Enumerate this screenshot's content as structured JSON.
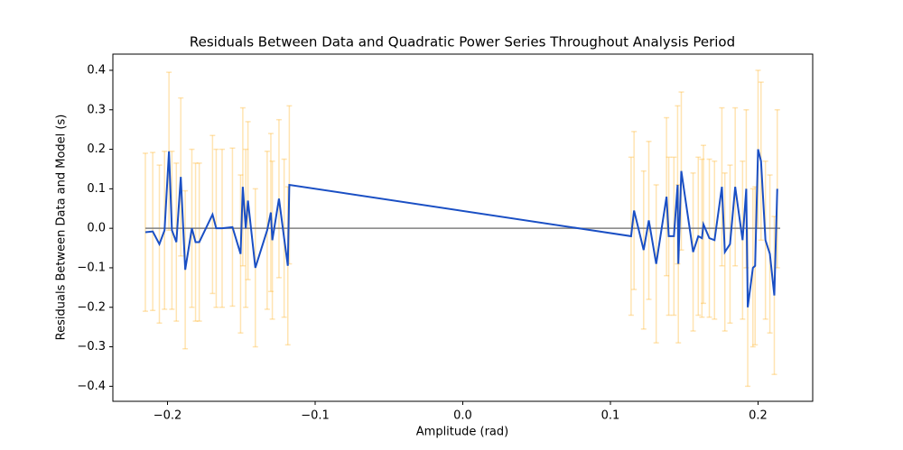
{
  "chart_data": {
    "type": "errorbar",
    "title": "Residuals Between Data and Quadratic Power Series Throughout Analysis Period",
    "xlabel": "Amplitude (rad)",
    "ylabel": "Residuals Between Data and Model (s)",
    "x": [
      -0.215,
      -0.21,
      -0.2055,
      -0.202,
      -0.199,
      -0.197,
      -0.194,
      -0.191,
      -0.188,
      -0.1835,
      -0.181,
      -0.1785,
      -0.1695,
      -0.167,
      -0.163,
      -0.156,
      -0.1505,
      -0.149,
      -0.147,
      -0.1455,
      -0.1405,
      -0.1325,
      -0.13,
      -0.129,
      -0.1245,
      -0.121,
      -0.1185,
      -0.1175,
      0.114,
      0.116,
      0.1225,
      0.126,
      0.131,
      0.138,
      0.1395,
      0.143,
      0.1455,
      0.146,
      0.148,
      0.156,
      0.1595,
      0.162,
      0.163,
      0.167,
      0.1705,
      0.1755,
      0.1775,
      0.181,
      0.1845,
      0.1895,
      0.192,
      0.193,
      0.1965,
      0.198,
      0.2,
      0.202,
      0.205,
      0.208,
      0.211,
      0.213
    ],
    "values": [
      -0.01,
      -0.008,
      -0.04,
      -0.005,
      0.195,
      -0.005,
      -0.035,
      0.13,
      -0.105,
      0.0,
      -0.035,
      -0.035,
      0.035,
      0.0,
      0.0,
      0.003,
      -0.065,
      0.105,
      0.0,
      0.07,
      -0.1,
      -0.005,
      0.04,
      -0.03,
      0.075,
      -0.025,
      -0.095,
      0.11,
      -0.02,
      0.045,
      -0.055,
      0.02,
      -0.09,
      0.08,
      -0.02,
      -0.02,
      0.11,
      -0.09,
      0.145,
      -0.06,
      -0.02,
      -0.025,
      0.01,
      -0.025,
      -0.03,
      0.105,
      -0.06,
      -0.04,
      0.105,
      -0.03,
      0.1,
      -0.2,
      -0.1,
      -0.095,
      0.2,
      0.17,
      -0.03,
      -0.065,
      -0.17,
      0.1
    ],
    "yerr": 0.2,
    "color": "#1a4fc4",
    "errorbar_color": "#ffa500",
    "hline": {
      "y": 0,
      "xmin": -0.215,
      "xmax": 0.215,
      "color": "#808080"
    },
    "xlim": [
      -0.237,
      0.237
    ],
    "ylim": [
      -0.438,
      0.441
    ],
    "xticks": [
      {
        "value": -0.2,
        "label": "−0.2"
      },
      {
        "value": -0.1,
        "label": "−0.1"
      },
      {
        "value": 0,
        "label": "0.0"
      },
      0.1,
      0.2
    ],
    "yticks": [
      {
        "value": -0.4,
        "label": "−0.4"
      },
      {
        "value": -0.3,
        "label": "−0.3"
      },
      {
        "value": -0.2,
        "label": "−0.2"
      },
      {
        "value": -0.1,
        "label": "−0.1"
      },
      {
        "value": 0,
        "label": "0.0"
      },
      0.1,
      0.2,
      0.3,
      0.4
    ]
  }
}
